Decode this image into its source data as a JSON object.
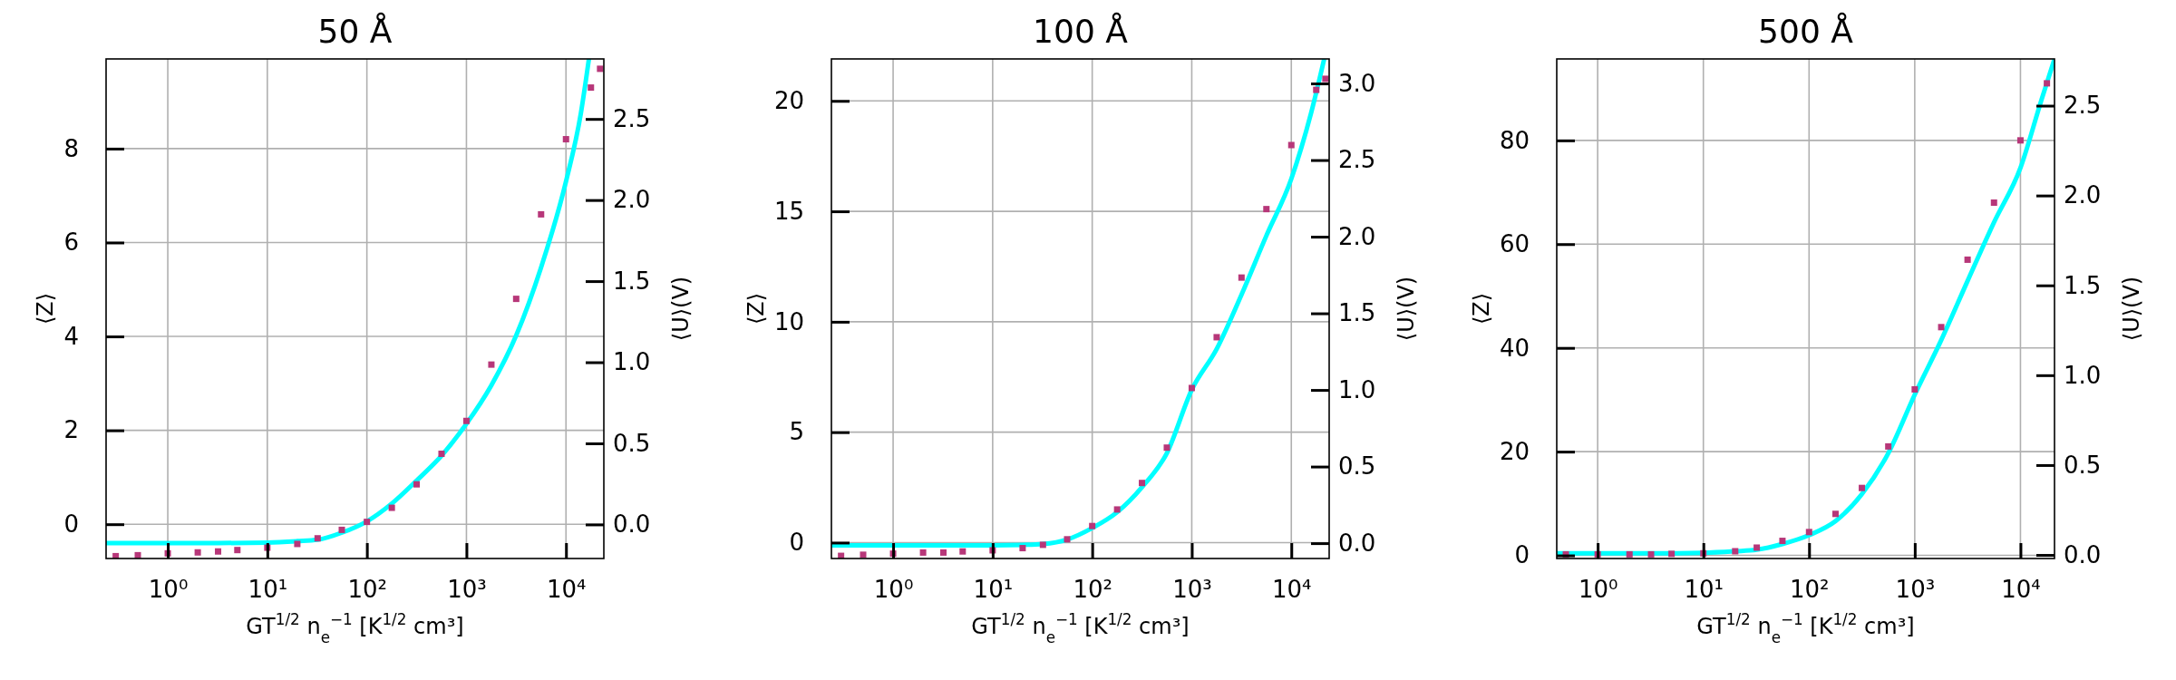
{
  "chart_data": [
    {
      "type": "line",
      "title": "50 Å",
      "xlabel": "GT$^{1/2}$ n$_{e}$$^{−1}$ [K$^{1/2}$ cm³]",
      "ylabel": "⟨Z⟩",
      "y2label": "⟨U⟩(V)",
      "log": "x",
      "grid": true,
      "xlim": [
        0.24,
        24000
      ],
      "xticks": [
        {
          "value": 1,
          "label": "10⁰"
        },
        {
          "value": 10,
          "label": "10¹"
        },
        {
          "value": 100,
          "label": "10²"
        },
        {
          "value": 1000,
          "label": "10³"
        },
        {
          "value": 10000,
          "label": "10⁴"
        }
      ],
      "ylim": [
        -0.73,
        9.91
      ],
      "yticks": [
        0,
        2,
        4,
        6,
        8
      ],
      "y2lim": [
        -0.21,
        2.87
      ],
      "y2ticks": [
        {
          "value": 0,
          "label": "0.0"
        },
        0.5,
        {
          "value": 1,
          "label": "1.0"
        },
        1.5,
        {
          "value": 2,
          "label": "2.0"
        },
        2.5
      ],
      "series": [
        {
          "type": "scatter",
          "marker": "square",
          "color": "#b73779",
          "x": [
            0.3,
            0.5,
            1,
            2,
            3.2,
            5,
            10,
            20,
            32,
            56,
            100,
            178,
            316,
            562,
            1000,
            1780,
            3160,
            5620,
            10000,
            17800,
            22000
          ],
          "values": [
            -0.68,
            -0.66,
            -0.62,
            -0.6,
            -0.58,
            -0.55,
            -0.5,
            -0.42,
            -0.3,
            -0.12,
            0.05,
            0.35,
            0.85,
            1.5,
            2.2,
            3.4,
            4.8,
            6.6,
            8.2,
            9.3,
            9.7
          ]
        },
        {
          "type": "line",
          "marker": "none",
          "color": "#00ffff",
          "x": [
            0.24,
            1,
            3.2,
            10,
            20,
            32,
            56,
            100,
            178,
            316,
            562,
            1000,
            1780,
            3160,
            5620,
            10000,
            14100,
            17000
          ],
          "values": [
            -0.4,
            -0.4,
            -0.4,
            -0.39,
            -0.36,
            -0.33,
            -0.18,
            0.06,
            0.44,
            0.93,
            1.46,
            2.14,
            2.96,
            4.02,
            5.47,
            7.3,
            8.75,
            9.91
          ]
        }
      ]
    },
    {
      "type": "line",
      "title": "100 Å",
      "xlabel": "GT$^{1/2}$ n$_{e}$$^{−1}$ [K$^{1/2}$ cm³]",
      "ylabel": "⟨Z⟩",
      "y2label": "⟨U⟩(V)",
      "log": "x",
      "grid": true,
      "xlim": [
        0.24,
        24000
      ],
      "xticks": [
        {
          "value": 1,
          "label": "10⁰"
        },
        {
          "value": 10,
          "label": "10¹"
        },
        {
          "value": 100,
          "label": "10²"
        },
        {
          "value": 1000,
          "label": "10³"
        },
        {
          "value": 10000,
          "label": "10⁴"
        }
      ],
      "ylim": [
        -0.72,
        21.9
      ],
      "yticks": [
        0,
        5,
        10,
        15,
        20
      ],
      "y2lim": [
        -0.1,
        3.16
      ],
      "y2ticks": [
        {
          "value": 0,
          "label": "0.0"
        },
        0.5,
        {
          "value": 1,
          "label": "1.0"
        },
        1.5,
        {
          "value": 2,
          "label": "2.0"
        },
        2.5,
        {
          "value": 3,
          "label": "3.0"
        }
      ],
      "series": [
        {
          "type": "scatter",
          "marker": "square",
          "color": "#b73779",
          "x": [
            0.3,
            0.5,
            1,
            2,
            3.2,
            5,
            10,
            20,
            32,
            56,
            100,
            178,
            316,
            562,
            1000,
            1780,
            3160,
            5620,
            10000,
            17800,
            22000
          ],
          "values": [
            -0.6,
            -0.55,
            -0.5,
            -0.45,
            -0.45,
            -0.4,
            -0.35,
            -0.25,
            -0.1,
            0.15,
            0.75,
            1.5,
            2.7,
            4.3,
            7.0,
            9.3,
            12.0,
            15.1,
            18.0,
            20.5,
            21.0
          ]
        },
        {
          "type": "line",
          "marker": "none",
          "color": "#00ffff",
          "x": [
            0.24,
            1,
            3.2,
            10,
            20,
            32,
            56,
            100,
            178,
            316,
            562,
            1000,
            1780,
            3160,
            5620,
            10000,
            15800,
            21400
          ],
          "values": [
            -0.12,
            -0.12,
            -0.12,
            -0.12,
            -0.1,
            -0.06,
            0.14,
            0.66,
            1.38,
            2.51,
            4.05,
            6.92,
            8.77,
            11.23,
            13.9,
            16.47,
            19.45,
            21.9
          ]
        }
      ]
    },
    {
      "type": "line",
      "title": "500 Å",
      "xlabel": "GT$^{1/2}$ n$_{e}$$^{−1}$ [K$^{1/2}$ cm³]",
      "ylabel": "⟨Z⟩",
      "y2label": "⟨U⟩(V)",
      "log": "x",
      "grid": true,
      "xlim": [
        0.41,
        21000
      ],
      "xticks": [
        {
          "value": 1,
          "label": "10⁰"
        },
        {
          "value": 10,
          "label": "10¹"
        },
        {
          "value": 100,
          "label": "10²"
        },
        {
          "value": 1000,
          "label": "10³"
        },
        {
          "value": 10000,
          "label": "10⁴"
        }
      ],
      "ylim": [
        -0.6,
        95.7
      ],
      "yticks": [
        0,
        20,
        40,
        60,
        80
      ],
      "y2lim": [
        -0.02,
        2.76
      ],
      "y2ticks": [
        {
          "value": 0,
          "label": "0.0"
        },
        0.5,
        {
          "value": 1,
          "label": "1.0"
        },
        1.5,
        {
          "value": 2,
          "label": "2.0"
        },
        2.5
      ],
      "series": [
        {
          "type": "scatter",
          "marker": "square",
          "color": "#b73779",
          "x": [
            0.5,
            1,
            2,
            3.2,
            5,
            10,
            20,
            32,
            56,
            100,
            178,
            316,
            562,
            1000,
            1780,
            3160,
            5620,
            10000,
            17800
          ],
          "values": [
            0.2,
            0.2,
            0.2,
            0.2,
            0.3,
            0.4,
            0.8,
            1.5,
            2.8,
            4.5,
            8,
            13,
            21,
            32,
            44,
            57,
            68,
            80,
            91
          ]
        },
        {
          "type": "line",
          "marker": "none",
          "color": "#00ffff",
          "x": [
            0.41,
            1,
            3.2,
            10,
            20,
            32,
            56,
            100,
            178,
            316,
            562,
            1000,
            1780,
            3160,
            5620,
            10000,
            15800,
            21000
          ],
          "values": [
            0.4,
            0.4,
            0.4,
            0.5,
            0.8,
            1.1,
            2.2,
            3.9,
            6.6,
            11.8,
            19.7,
            31.0,
            41.5,
            52.9,
            64.2,
            74.7,
            87.8,
            95.7
          ]
        }
      ]
    }
  ]
}
